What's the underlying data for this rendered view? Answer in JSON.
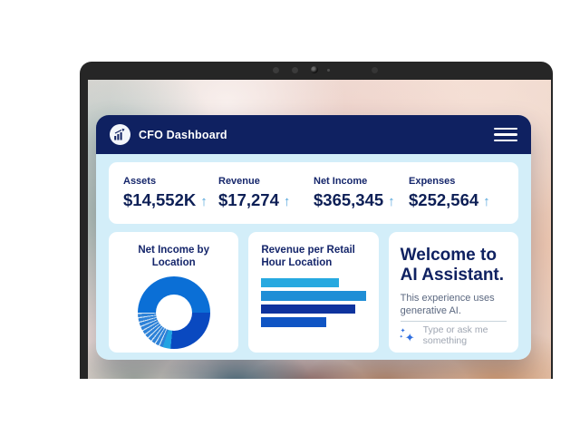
{
  "header": {
    "title": "CFO Dashboard",
    "logo_icon": "bar-chart-growth-icon",
    "menu_icon": "hamburger-menu-icon"
  },
  "icons": {
    "up_arrow_glyph": "↑",
    "sparkle_glyph": "✦"
  },
  "kpis": [
    {
      "label": "Assets",
      "value": "$14,552K"
    },
    {
      "label": "Revenue",
      "value": "$17,274"
    },
    {
      "label": "Net Income",
      "value": "$365,345"
    },
    {
      "label": "Expenses",
      "value": "$252,564"
    }
  ],
  "ai_card": {
    "heading_line1": "Welcome to",
    "heading_line2": "AI Assistant.",
    "body": "This experience uses generative AI.",
    "input_placeholder": "Type or ask me something"
  },
  "chart_data": [
    {
      "type": "pie",
      "title": "Net Income by Location",
      "donut": true,
      "start_angle_deg": -90,
      "legend": "none",
      "data_labels": "none",
      "segments": [
        {
          "name": "location-1",
          "value": 50,
          "color": "#0b6fd6"
        },
        {
          "name": "location-2",
          "value": 26.5,
          "color": "#0a49c0"
        },
        {
          "name": "location-3",
          "value": 3.5,
          "color": "#22a3e2"
        },
        {
          "name": "locations-small-striped",
          "value": 20,
          "color": "#2e82d8",
          "stripe_color": "#cfe3f4",
          "stripe_count": 10
        }
      ]
    },
    {
      "type": "bar",
      "title": "Revenue per Retail Hour Location",
      "orientation": "horizontal",
      "categories": [
        "",
        "",
        "",
        ""
      ],
      "values": [
        74,
        100,
        90,
        62
      ],
      "value_unit": "percent-of-plot-width",
      "colors": [
        "#27a9e0",
        "#1f8ed6",
        "#0e339e",
        "#0f55c4"
      ],
      "axes": "none",
      "grid": "off",
      "legend": "none"
    }
  ],
  "colors": {
    "bezel_dark": "#262626",
    "header_navy": "#0f2161",
    "panel_blue": "#d3eef9",
    "text_navy": "#15266b",
    "value_navy": "#0d1f56",
    "arrow_blue": "#53a5db",
    "subtext_gray": "#5b6880",
    "placeholder_gray": "#9fa6b2",
    "divider_gray": "#c9d5dc",
    "sparkle_blue": "#2f6fe0"
  }
}
